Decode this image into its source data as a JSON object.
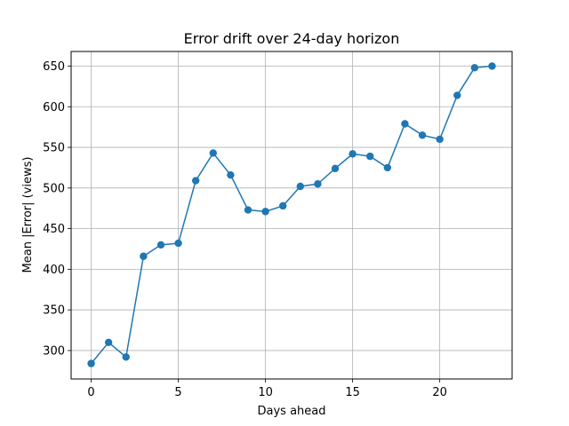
{
  "chart_data": {
    "type": "line",
    "title": "Error drift over 24-day horizon",
    "xlabel": "Days ahead",
    "ylabel": "Mean |Error| (views)",
    "xlim": [
      -1.15,
      24.15
    ],
    "ylim": [
      265,
      668
    ],
    "xticks": [
      0,
      5,
      10,
      15,
      20
    ],
    "yticks": [
      300,
      350,
      400,
      450,
      500,
      550,
      600,
      650
    ],
    "grid": true,
    "color": "#1f77b4",
    "marker": "circle",
    "x": [
      0,
      1,
      2,
      3,
      4,
      5,
      6,
      7,
      8,
      9,
      10,
      11,
      12,
      13,
      14,
      15,
      16,
      17,
      18,
      19,
      20,
      21,
      22,
      23
    ],
    "y": [
      284,
      310,
      292,
      416,
      430,
      432,
      509,
      543,
      516,
      473,
      471,
      478,
      502,
      505,
      524,
      542,
      539,
      525,
      579,
      565,
      560,
      614,
      648,
      650
    ]
  }
}
